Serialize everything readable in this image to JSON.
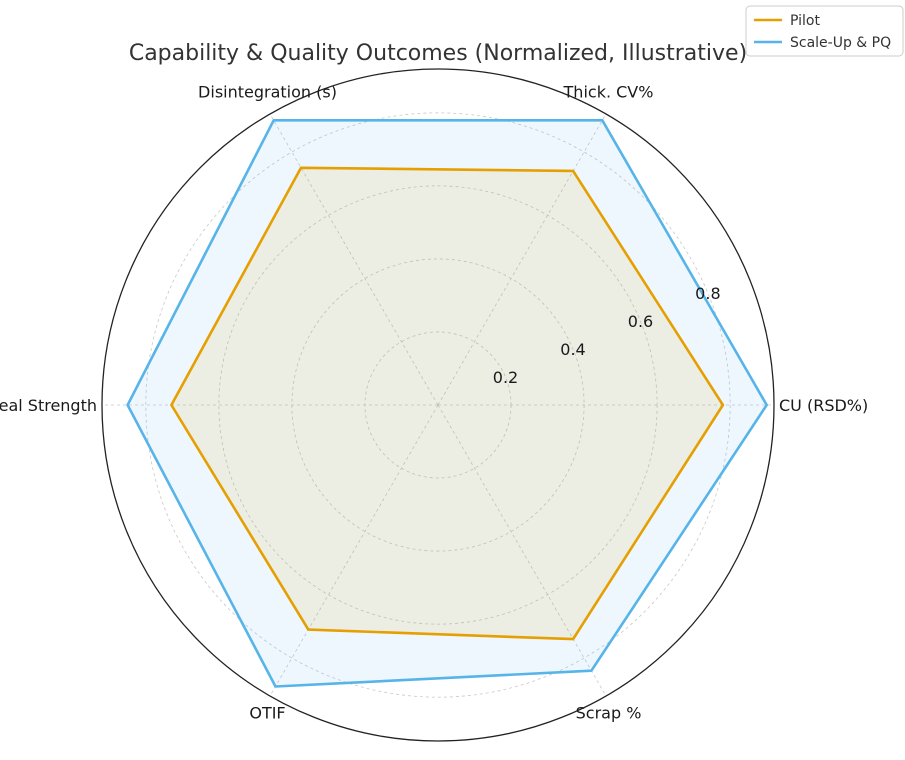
{
  "chart_data": {
    "type": "radar",
    "title": "Capability & Quality Outcomes (Normalized, Illustrative)",
    "axes": [
      "CU (RSD%)",
      "Thick. CV%",
      "Disintegration (s)",
      "Seal Strength",
      "OTIF",
      "Scrap %"
    ],
    "r_ticks": [
      "0.2",
      "0.4",
      "0.6",
      "0.8"
    ],
    "r_tick_values": [
      0.2,
      0.4,
      0.6,
      0.8
    ],
    "r_max": 0.92,
    "grid": true,
    "legend_position": "top-right",
    "series": [
      {
        "name": "Pilot",
        "values": [
          0.78,
          0.74,
          0.75,
          0.73,
          0.71,
          0.74
        ],
        "color": "#e69f00"
      },
      {
        "name": "Scale-Up & PQ",
        "values": [
          0.9,
          0.9,
          0.9,
          0.85,
          0.89,
          0.84
        ],
        "color": "#56b4e9"
      }
    ]
  }
}
